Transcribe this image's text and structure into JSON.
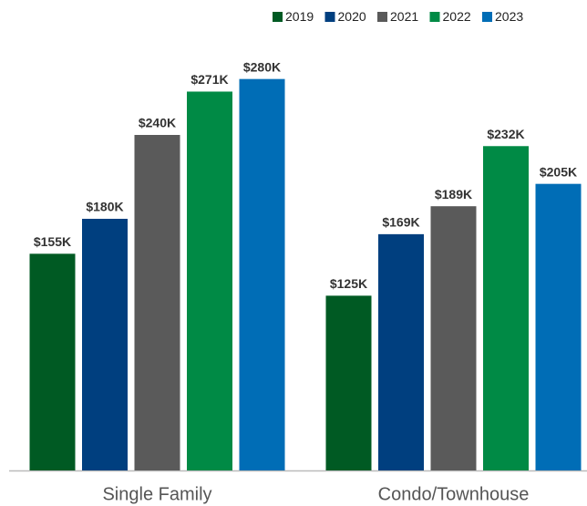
{
  "chart_data": {
    "type": "bar",
    "categories": [
      "Single Family",
      "Condo/Townhouse"
    ],
    "series": [
      {
        "name": "2019",
        "color": "#005a23",
        "values": [
          155,
          125
        ],
        "value_labels": [
          "$155K",
          "$125K"
        ]
      },
      {
        "name": "2020",
        "color": "#003f7f",
        "values": [
          180,
          169
        ],
        "value_labels": [
          "$180K",
          "$169K"
        ]
      },
      {
        "name": "2021",
        "color": "#5a5a5a",
        "values": [
          240,
          189
        ],
        "value_labels": [
          "$240K",
          "$189K"
        ]
      },
      {
        "name": "2022",
        "color": "#008a45",
        "values": [
          271,
          232
        ],
        "value_labels": [
          "$271K",
          "$232K"
        ]
      },
      {
        "name": "2023",
        "color": "#006db6",
        "values": [
          280,
          205
        ],
        "value_labels": [
          "$280K",
          "$205K"
        ]
      }
    ],
    "ylim": [
      0,
      300
    ],
    "legend": "top-right"
  }
}
